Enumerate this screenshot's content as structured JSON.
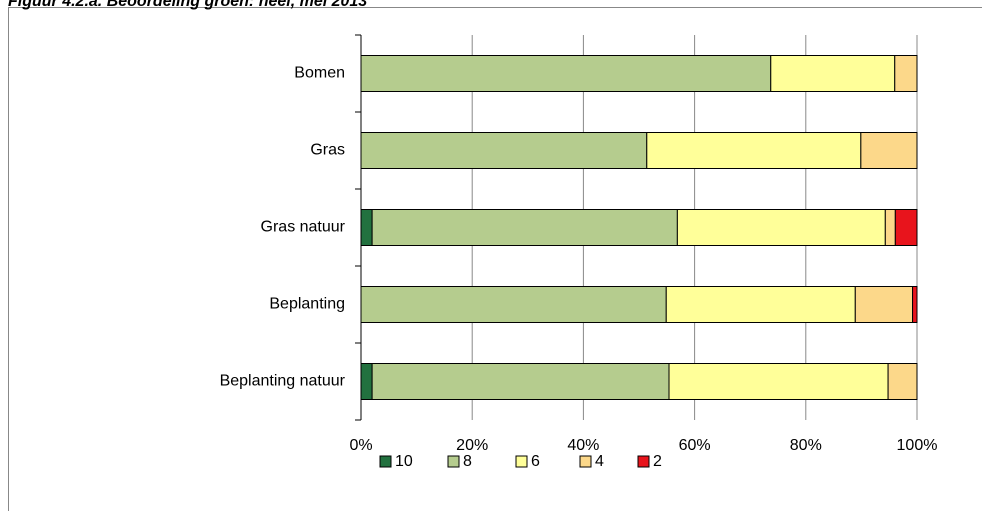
{
  "chart_data": {
    "type": "stacked-barh",
    "title": "Figuur 4.2.a. Beoordeling groen: heel, mei 2013",
    "categories": [
      "Bomen",
      "Gras",
      "Gras natuur",
      "Beplanting",
      "Beplanting natuur"
    ],
    "series": [
      {
        "name": "10",
        "color": "#22713f",
        "values": [
          0,
          0,
          2.0,
          0,
          2.0
        ]
      },
      {
        "name": "8",
        "color": "#b5cc8e",
        "values": [
          73.7,
          51.4,
          54.9,
          54.9,
          53.4
        ]
      },
      {
        "name": "6",
        "color": "#ffff99",
        "values": [
          22.3,
          38.5,
          37.4,
          34.0,
          39.4
        ]
      },
      {
        "name": "4",
        "color": "#fcd88a",
        "values": [
          4.0,
          10.1,
          1.8,
          10.3,
          5.2
        ]
      },
      {
        "name": "2",
        "color": "#e8141c",
        "values": [
          0,
          0,
          3.9,
          0.8,
          0
        ]
      }
    ],
    "xlim": [
      0,
      100
    ],
    "xticks": [
      {
        "value": 0,
        "label": "0%"
      },
      {
        "value": 20,
        "label": "20%"
      },
      {
        "value": 40,
        "label": "40%"
      },
      {
        "value": 60,
        "label": "60%"
      },
      {
        "value": 80,
        "label": "80%"
      },
      {
        "value": 100,
        "label": "100%"
      }
    ],
    "grid": true,
    "legend": "bottom"
  }
}
